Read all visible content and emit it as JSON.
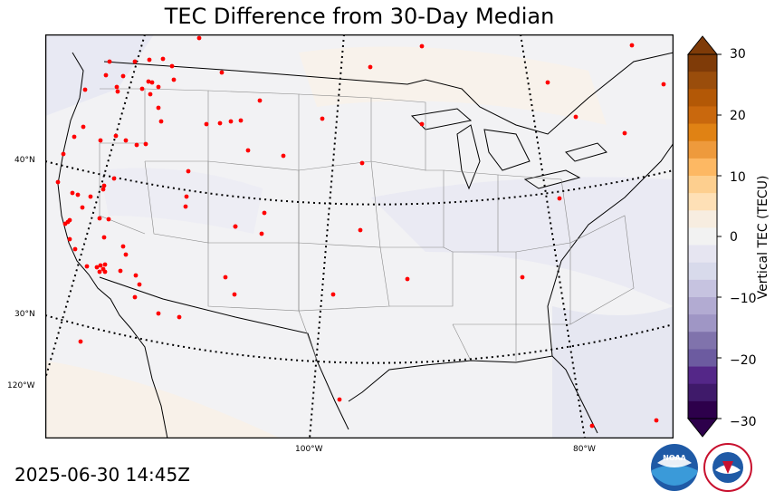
{
  "title": "TEC Difference from 30-Day Median",
  "timestamp": "2025-06-30 14:45Z",
  "colorbar": {
    "label": "Vertical TEC (TECU)",
    "min": -30,
    "max": 30,
    "ticks": [
      "30",
      "20",
      "10",
      "0",
      "−10",
      "−20",
      "−30"
    ],
    "colors_top_to_bottom": [
      "#7f3b08",
      "#9a4d0b",
      "#b35806",
      "#c9680d",
      "#e08214",
      "#ee9a3c",
      "#fdb863",
      "#fdcf8f",
      "#fee0b6",
      "#f7ede0",
      "#f2f2f2",
      "#e6e5f1",
      "#d8daeb",
      "#c6c3e0",
      "#b2abd2",
      "#9f96c5",
      "#8073ac",
      "#6c5ba0",
      "#542788",
      "#3f1a6a",
      "#2d004b"
    ]
  },
  "graticule": {
    "lat_labels": [
      "40°N",
      "30°N",
      "120°W"
    ],
    "lon_labels": [
      "100°W",
      "80°W"
    ]
  },
  "stations_count_visible": 96,
  "logos": {
    "noaa": "NOAA",
    "nws": "NATIONAL WEATHER SERVICE"
  },
  "colors": {
    "station": "#ff0000",
    "land": "#f2f2f4",
    "positive_tint": "#f8f1e8",
    "negative_tint": "#e8e8f2"
  }
}
